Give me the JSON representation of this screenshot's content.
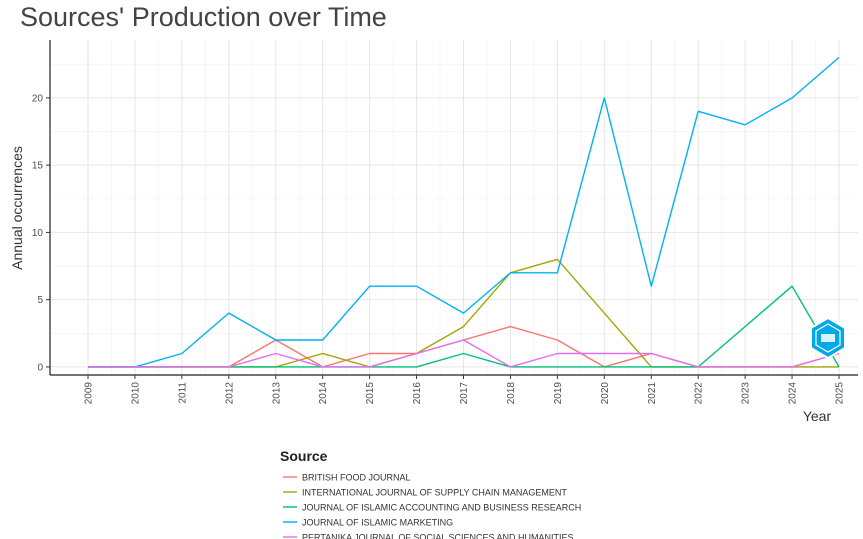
{
  "title": "Sources' Production over Time",
  "chart_data": {
    "type": "line",
    "title": "Sources' Production over Time",
    "xlabel": "Year",
    "ylabel": "Annual occurrences",
    "x": [
      2009,
      2010,
      2011,
      2012,
      2013,
      2014,
      2015,
      2016,
      2017,
      2018,
      2019,
      2020,
      2021,
      2022,
      2023,
      2024,
      2025
    ],
    "xlim": [
      2009,
      2025
    ],
    "ylim": [
      0,
      23
    ],
    "yticks": [
      0,
      5,
      10,
      15,
      20
    ],
    "grid": true,
    "legend_title": "Source",
    "legend_placement": "bottom",
    "series": [
      {
        "name": "BRITISH FOOD JOURNAL",
        "color": "#F8766D",
        "values": [
          0,
          0,
          0,
          0,
          2,
          0,
          1,
          1,
          2,
          3,
          2,
          0,
          1,
          0,
          0,
          0,
          1
        ]
      },
      {
        "name": "INTERNATIONAL JOURNAL OF SUPPLY CHAIN MANAGEMENT",
        "color": "#A3A500",
        "values": [
          0,
          0,
          0,
          0,
          0,
          1,
          0,
          1,
          3,
          7,
          8,
          4,
          0,
          0,
          0,
          0,
          0
        ]
      },
      {
        "name": "JOURNAL OF ISLAMIC ACCOUNTING AND BUSINESS RESEARCH",
        "color": "#00BF7D",
        "values": [
          0,
          0,
          0,
          0,
          0,
          0,
          0,
          0,
          1,
          0,
          0,
          0,
          0,
          0,
          3,
          6,
          0
        ]
      },
      {
        "name": "JOURNAL OF ISLAMIC MARKETING",
        "color": "#00B0F6",
        "values": [
          0,
          0,
          1,
          4,
          2,
          2,
          6,
          6,
          4,
          7,
          7,
          20,
          6,
          19,
          18,
          20,
          23
        ]
      },
      {
        "name": "PERTANIKA JOURNAL OF SOCIAL SCIENCES AND HUMANITIES",
        "color": "#E76BF3",
        "values": [
          0,
          0,
          0,
          0,
          1,
          0,
          0,
          1,
          2,
          0,
          1,
          1,
          1,
          0,
          0,
          0,
          1
        ]
      }
    ]
  }
}
